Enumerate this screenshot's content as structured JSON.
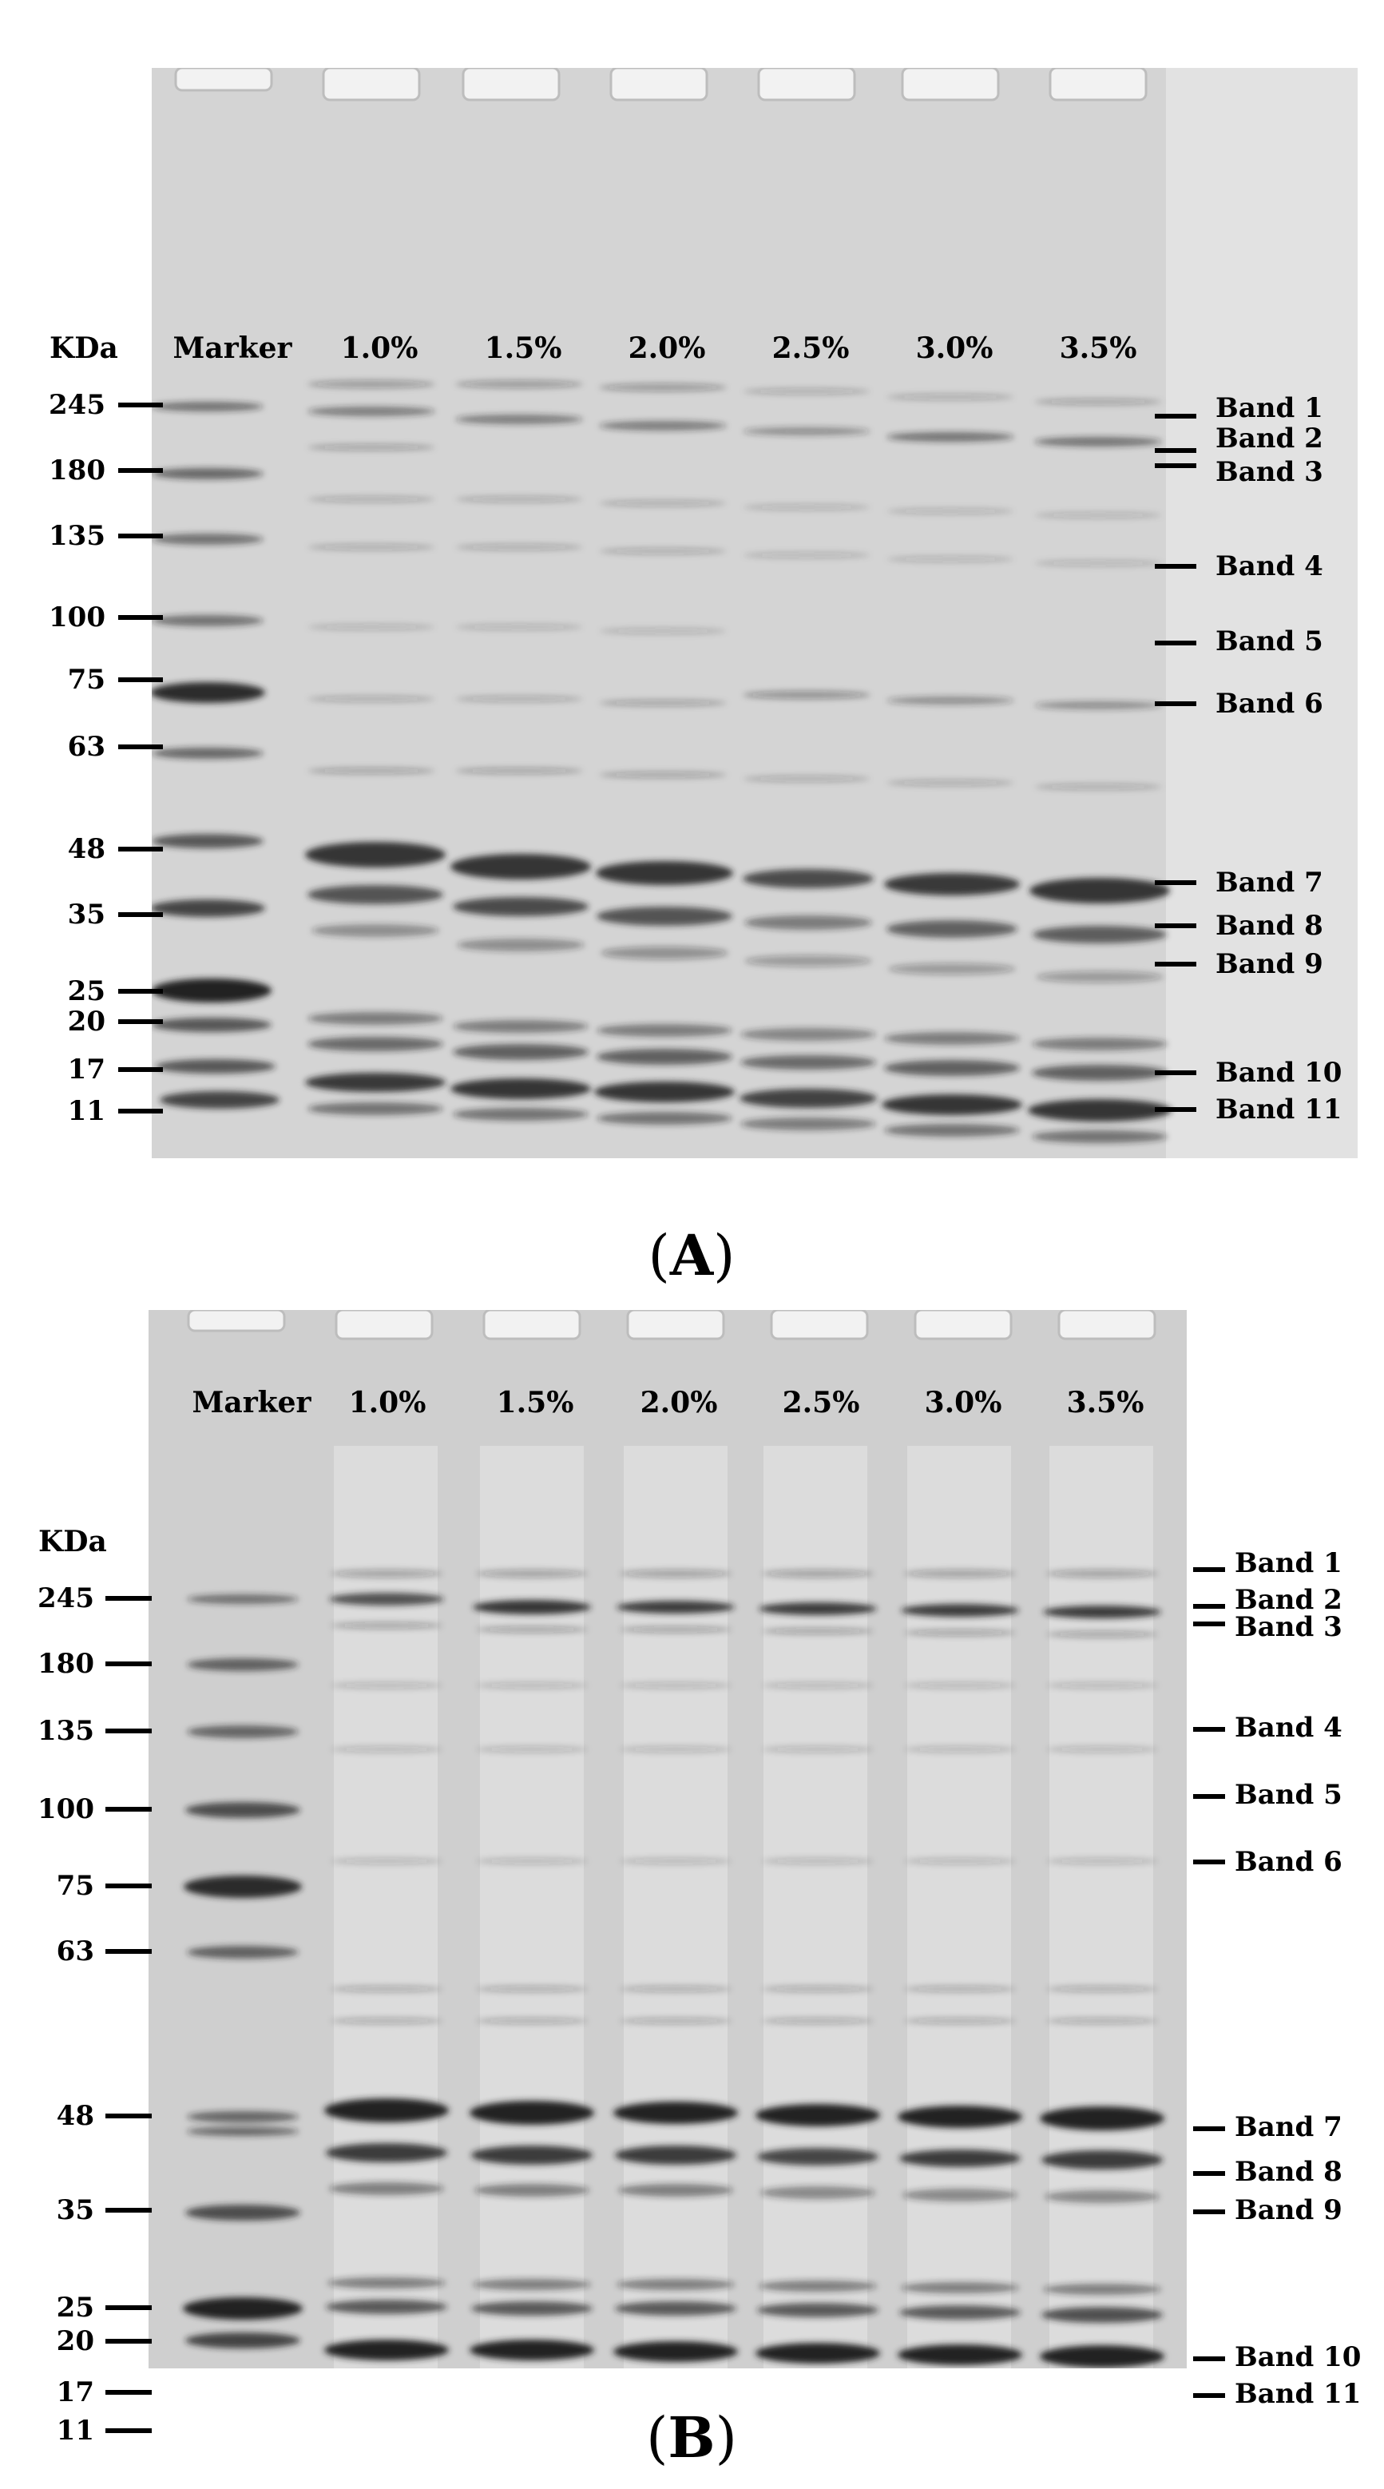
{
  "panels": [
    {
      "id": "A",
      "caption_open": "(",
      "caption_letter": "A",
      "caption_close": ")",
      "unit_label": "KDa",
      "lane_labels": [
        "Marker",
        "1.0%",
        "1.5%",
        "2.0%",
        "2.5%",
        "3.0%",
        "3.5%"
      ],
      "mw_markers": [
        "245",
        "180",
        "135",
        "100",
        "75",
        "63",
        "48",
        "35",
        "25",
        "20",
        "17",
        "11"
      ],
      "band_labels": [
        "Band 1",
        "Band 2",
        "Band 3",
        "Band 4",
        "Band 5",
        "Band 6",
        "Band 7",
        "Band 8",
        "Band 9",
        "Band 10",
        "Band 11"
      ]
    },
    {
      "id": "B",
      "caption_open": "(",
      "caption_letter": "B",
      "caption_close": ")",
      "unit_label": "KDa",
      "lane_labels": [
        "Marker",
        "1.0%",
        "1.5%",
        "2.0%",
        "2.5%",
        "3.0%",
        "3.5%"
      ],
      "mw_markers": [
        "245",
        "180",
        "135",
        "100",
        "75",
        "63",
        "48",
        "35",
        "25",
        "20",
        "17",
        "11"
      ],
      "band_labels": [
        "Band 1",
        "Band 2",
        "Band 3",
        "Band 4",
        "Band 5",
        "Band 6",
        "Band 7",
        "Band 8",
        "Band 9",
        "Band 10",
        "Band 11"
      ]
    }
  ]
}
